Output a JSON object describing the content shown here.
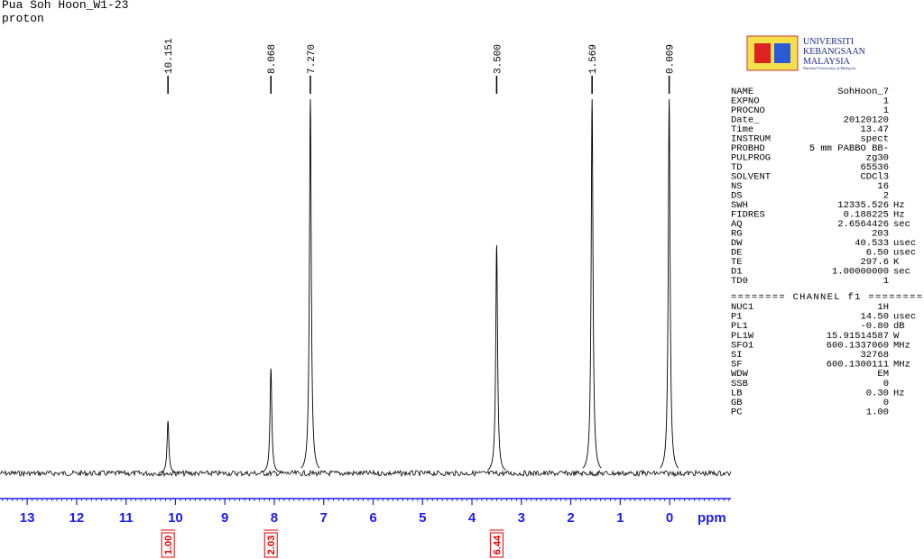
{
  "chart_data": {
    "type": "nmr",
    "title": "Pua Soh Hoon_W1-23",
    "subtitle": "proton",
    "x_label": "ppm",
    "xlim": [
      13.55,
      -1.24
    ],
    "xticks": [
      13,
      12,
      11,
      10,
      9,
      8,
      7,
      6,
      5,
      4,
      3,
      2,
      1,
      0
    ],
    "ylim": [
      0,
      100
    ],
    "axis_color": "#1a1aff",
    "line_color": "#000000",
    "peaks": {
      "x": [
        10.151,
        8.068,
        7.27,
        3.5,
        1.569,
        0.009
      ],
      "x_labels": [
        "10.151",
        "8.068",
        "7.270",
        "3.500",
        "1.569",
        "0.009"
      ],
      "values": [
        14,
        28,
        100,
        61,
        100,
        100
      ]
    },
    "integrals": {
      "x": [
        10.151,
        8.068,
        3.5
      ],
      "values": [
        1.0,
        2.03,
        6.44
      ],
      "value_labels": [
        "1.00",
        "2.03",
        "6.44"
      ],
      "color": "#e00000"
    }
  },
  "logo": {
    "line1": "UNIVERSITI",
    "line2": "KEBANGSAAN",
    "line3": "MALAYSIA",
    "tagline": "National University of Malaysia"
  },
  "parameters": {
    "rows": [
      [
        "NAME",
        "SohHoon_7"
      ],
      [
        "EXPNO",
        "1"
      ],
      [
        "PROCNO",
        "1"
      ],
      [
        "Date_",
        "20120120"
      ],
      [
        "Time",
        "13.47"
      ],
      [
        "INSTRUM",
        "spect"
      ],
      [
        "PROBHD",
        "5 mm PABBO BB-"
      ],
      [
        "PULPROG",
        "zg30"
      ],
      [
        "TD",
        "65536"
      ],
      [
        "SOLVENT",
        "CDCl3"
      ],
      [
        "NS",
        "16"
      ],
      [
        "DS",
        "2"
      ],
      [
        "SWH",
        "12335.526",
        "Hz"
      ],
      [
        "FIDRES",
        "0.188225",
        "Hz"
      ],
      [
        "AQ",
        "2.6564426",
        "sec"
      ],
      [
        "RG",
        "203"
      ],
      [
        "DW",
        "40.533",
        "usec"
      ],
      [
        "DE",
        "6.50",
        "usec"
      ],
      [
        "TE",
        "297.6",
        "K"
      ],
      [
        "D1",
        "1.00000000",
        "sec"
      ],
      [
        "TD0",
        "1"
      ]
    ],
    "channel_header": "======== CHANNEL f1 ========",
    "channel_rows": [
      [
        "NUC1",
        "1H"
      ],
      [
        "P1",
        "14.50",
        "usec"
      ],
      [
        "PL1",
        "-0.80",
        "dB"
      ],
      [
        "PL1W",
        "15.91514587",
        "W"
      ],
      [
        "SFO1",
        "600.1337060",
        "MHz"
      ],
      [
        "SI",
        "32768"
      ],
      [
        "SF",
        "600.1300111",
        "MHz"
      ],
      [
        "WDW",
        "EM"
      ],
      [
        "SSB",
        "0"
      ],
      [
        "LB",
        "0.30",
        "Hz"
      ],
      [
        "GB",
        "0"
      ],
      [
        "PC",
        "1.00"
      ]
    ]
  }
}
